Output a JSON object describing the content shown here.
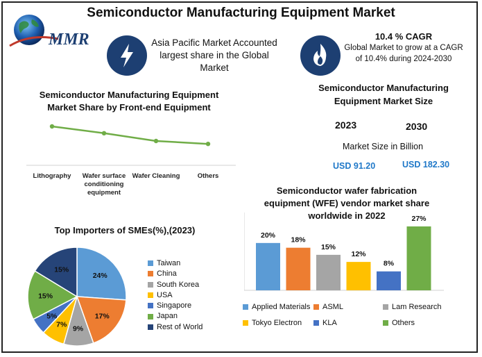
{
  "title": "Semiconductor Manufacturing Equipment Market",
  "logo": {
    "text": "MMR",
    "icon": "globe-icon"
  },
  "info_cards": [
    {
      "icon": "lightning-icon",
      "text": "Asia Pacific Market Accounted largest share in the Global Market"
    },
    {
      "icon": "flame-icon",
      "heading": "10.4 % CAGR",
      "text": "Global Market to grow at a CAGR of 10.4% during 2024-2030"
    }
  ],
  "market_size": {
    "title": "Semiconductor Manufacturing Equipment Market Size",
    "year_start": "2023",
    "year_end": "2030",
    "caption": "Market Size in Billion",
    "value_start": "USD 91.20",
    "value_end": "USD 182.30"
  },
  "colors": {
    "navy": "#1d3f72",
    "line_green": "#70ad47",
    "usd_blue": "#1f78c8"
  },
  "chart_data": [
    {
      "type": "line",
      "title": "Semiconductor Manufacturing Equipment Market Share by Front-end Equipment",
      "categories": [
        "Lithography",
        "Wafer surface conditioning equipment",
        "Wafer Cleaning",
        "Others"
      ],
      "values": [
        40,
        33,
        25,
        22
      ],
      "ylim": [
        0,
        50
      ],
      "grid": false
    },
    {
      "type": "pie",
      "title": "Top Importers of SMEs(%),(2023)",
      "labels": [
        "Taiwan",
        "China",
        "South Korea",
        "USA",
        "Singapore",
        "Japan",
        "Rest of World"
      ],
      "values": [
        24,
        17,
        9,
        7,
        5,
        15,
        15
      ],
      "value_labels": [
        "24%",
        "17%",
        "9%",
        "7%",
        "5%",
        "15%",
        "15%"
      ],
      "colors": [
        "#5b9bd5",
        "#ed7d31",
        "#a5a5a5",
        "#ffc000",
        "#4472c4",
        "#70ad47",
        "#264478"
      ],
      "legend": "right"
    },
    {
      "type": "bar",
      "title": "Semiconductor wafer fabrication equipment (WFE) vendor market share worldwide in 2022",
      "categories": [
        "Applied Materials",
        "ASML",
        "Lam Research",
        "Tokyo Electron",
        "KLA",
        "Others"
      ],
      "values": [
        20,
        18,
        15,
        12,
        8,
        27
      ],
      "value_labels": [
        "20%",
        "18%",
        "15%",
        "12%",
        "8%",
        "27%"
      ],
      "colors": [
        "#5b9bd5",
        "#ed7d31",
        "#a5a5a5",
        "#ffc000",
        "#4472c4",
        "#70ad47"
      ],
      "ylim": [
        0,
        30
      ],
      "legend": "bottom"
    }
  ]
}
